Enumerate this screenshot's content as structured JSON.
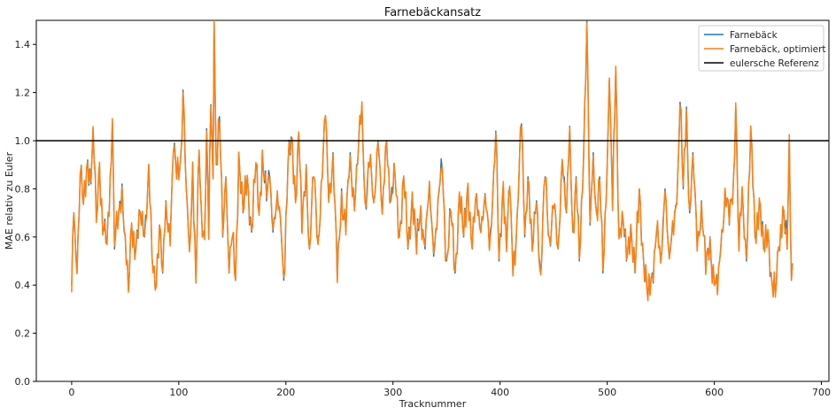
{
  "chart_data": {
    "type": "line",
    "title": "Farnebäckansatz",
    "xlabel": "Tracknummer",
    "ylabel": "MAE relativ zu Euler",
    "xlim": [
      -33,
      707
    ],
    "ylim": [
      0.0,
      1.5
    ],
    "xticks": [
      0,
      100,
      200,
      300,
      400,
      500,
      600,
      700
    ],
    "yticks": [
      0.0,
      0.2,
      0.4,
      0.6,
      0.8,
      1.0,
      1.2,
      1.4
    ],
    "legend_position": "top-right",
    "grid": false,
    "reference": {
      "name": "eulersche Referenz",
      "y": 1.0,
      "color": "#000000"
    },
    "series": [
      {
        "name": "Farnebäck",
        "color": "#1f77b4"
      },
      {
        "name": "Farnebäck, optimiert",
        "color": "#ff7f0e"
      }
    ],
    "num_tracks": 674,
    "keypoints": [
      [
        0,
        0.4
      ],
      [
        2,
        0.7
      ],
      [
        5,
        0.45
      ],
      [
        8,
        0.86
      ],
      [
        11,
        0.74
      ],
      [
        15,
        0.92
      ],
      [
        18,
        0.82
      ],
      [
        20,
        1.05
      ],
      [
        23,
        0.7
      ],
      [
        26,
        0.9
      ],
      [
        29,
        0.62
      ],
      [
        33,
        0.58
      ],
      [
        36,
        0.85
      ],
      [
        38,
        1.08
      ],
      [
        40,
        0.55
      ],
      [
        44,
        0.7
      ],
      [
        47,
        0.82
      ],
      [
        50,
        0.6
      ],
      [
        53,
        0.38
      ],
      [
        56,
        0.65
      ],
      [
        60,
        0.55
      ],
      [
        64,
        0.7
      ],
      [
        68,
        0.6
      ],
      [
        72,
        0.9
      ],
      [
        75,
        0.52
      ],
      [
        78,
        0.38
      ],
      [
        82,
        0.65
      ],
      [
        85,
        0.45
      ],
      [
        88,
        0.75
      ],
      [
        92,
        0.6
      ],
      [
        95,
        0.95
      ],
      [
        98,
        0.85
      ],
      [
        102,
        0.95
      ],
      [
        104,
        1.21
      ],
      [
        107,
        0.8
      ],
      [
        110,
        0.55
      ],
      [
        113,
        0.9
      ],
      [
        116,
        0.42
      ],
      [
        119,
        0.95
      ],
      [
        121,
        0.72
      ],
      [
        124,
        0.6
      ],
      [
        126,
        1.05
      ],
      [
        128,
        0.6
      ],
      [
        130,
        1.15
      ],
      [
        132,
        0.85
      ],
      [
        133,
        1.5
      ],
      [
        135,
        0.9
      ],
      [
        138,
        1.1
      ],
      [
        141,
        0.6
      ],
      [
        144,
        0.85
      ],
      [
        147,
        0.45
      ],
      [
        150,
        0.6
      ],
      [
        153,
        0.42
      ],
      [
        156,
        0.95
      ],
      [
        160,
        0.7
      ],
      [
        164,
        0.85
      ],
      [
        168,
        0.62
      ],
      [
        172,
        0.9
      ],
      [
        175,
        0.7
      ],
      [
        178,
        0.95
      ],
      [
        182,
        0.75
      ],
      [
        185,
        0.85
      ],
      [
        188,
        0.62
      ],
      [
        192,
        0.78
      ],
      [
        196,
        0.58
      ],
      [
        198,
        0.42
      ],
      [
        202,
        0.9
      ],
      [
        206,
        1.0
      ],
      [
        209,
        0.75
      ],
      [
        212,
        1.03
      ],
      [
        215,
        0.62
      ],
      [
        219,
        0.9
      ],
      [
        222,
        0.55
      ],
      [
        226,
        0.85
      ],
      [
        230,
        0.6
      ],
      [
        234,
        0.85
      ],
      [
        237,
        1.1
      ],
      [
        240,
        0.75
      ],
      [
        244,
        0.95
      ],
      [
        248,
        0.42
      ],
      [
        252,
        0.8
      ],
      [
        256,
        0.62
      ],
      [
        260,
        0.95
      ],
      [
        264,
        0.72
      ],
      [
        268,
        1.0
      ],
      [
        271,
        1.15
      ],
      [
        274,
        0.75
      ],
      [
        278,
        0.9
      ],
      [
        282,
        0.75
      ],
      [
        286,
        1.0
      ],
      [
        290,
        0.7
      ],
      [
        294,
        1.0
      ],
      [
        298,
        0.75
      ],
      [
        302,
        0.85
      ],
      [
        306,
        0.6
      ],
      [
        310,
        0.85
      ],
      [
        314,
        0.55
      ],
      [
        318,
        0.78
      ],
      [
        322,
        0.55
      ],
      [
        326,
        0.72
      ],
      [
        330,
        0.55
      ],
      [
        334,
        0.82
      ],
      [
        338,
        0.52
      ],
      [
        342,
        0.75
      ],
      [
        346,
        0.88
      ],
      [
        350,
        0.5
      ],
      [
        354,
        0.7
      ],
      [
        358,
        0.45
      ],
      [
        362,
        0.78
      ],
      [
        366,
        0.6
      ],
      [
        370,
        0.82
      ],
      [
        374,
        0.55
      ],
      [
        378,
        0.78
      ],
      [
        382,
        0.62
      ],
      [
        386,
        0.78
      ],
      [
        390,
        0.55
      ],
      [
        393,
        0.75
      ],
      [
        396,
        1.04
      ],
      [
        399,
        0.5
      ],
      [
        403,
        0.82
      ],
      [
        406,
        0.55
      ],
      [
        409,
        0.8
      ],
      [
        412,
        0.45
      ],
      [
        416,
        0.7
      ],
      [
        420,
        1.07
      ],
      [
        423,
        0.6
      ],
      [
        426,
        0.85
      ],
      [
        430,
        0.55
      ],
      [
        434,
        0.75
      ],
      [
        438,
        0.45
      ],
      [
        442,
        0.85
      ],
      [
        446,
        0.6
      ],
      [
        450,
        0.72
      ],
      [
        454,
        0.55
      ],
      [
        458,
        0.92
      ],
      [
        462,
        0.7
      ],
      [
        465,
        1.06
      ],
      [
        468,
        0.62
      ],
      [
        471,
        0.85
      ],
      [
        474,
        0.5
      ],
      [
        477,
        0.8
      ],
      [
        481,
        1.5
      ],
      [
        484,
        0.65
      ],
      [
        487,
        0.95
      ],
      [
        490,
        0.7
      ],
      [
        493,
        0.85
      ],
      [
        496,
        0.45
      ],
      [
        499,
        0.75
      ],
      [
        502,
        1.25
      ],
      [
        505,
        0.72
      ],
      [
        508,
        1.3
      ],
      [
        511,
        0.6
      ],
      [
        514,
        0.7
      ],
      [
        518,
        0.5
      ],
      [
        522,
        0.65
      ],
      [
        526,
        0.45
      ],
      [
        530,
        0.8
      ],
      [
        534,
        0.5
      ],
      [
        538,
        0.34
      ],
      [
        542,
        0.45
      ],
      [
        546,
        0.62
      ],
      [
        550,
        0.5
      ],
      [
        554,
        0.8
      ],
      [
        558,
        0.52
      ],
      [
        562,
        0.62
      ],
      [
        566,
        0.88
      ],
      [
        568,
        1.16
      ],
      [
        571,
        0.8
      ],
      [
        574,
        1.14
      ],
      [
        577,
        0.7
      ],
      [
        580,
        0.95
      ],
      [
        584,
        0.55
      ],
      [
        588,
        0.75
      ],
      [
        592,
        0.45
      ],
      [
        596,
        0.6
      ],
      [
        600,
        0.4
      ],
      [
        603,
        0.36
      ],
      [
        606,
        0.55
      ],
      [
        610,
        0.8
      ],
      [
        614,
        0.65
      ],
      [
        618,
        0.85
      ],
      [
        620,
        1.15
      ],
      [
        623,
        0.55
      ],
      [
        626,
        0.8
      ],
      [
        630,
        0.5
      ],
      [
        634,
        1.05
      ],
      [
        638,
        0.6
      ],
      [
        642,
        0.75
      ],
      [
        646,
        0.55
      ],
      [
        650,
        0.62
      ],
      [
        654,
        0.4
      ],
      [
        657,
        0.36
      ],
      [
        660,
        0.55
      ],
      [
        664,
        0.72
      ],
      [
        668,
        0.55
      ],
      [
        670,
        1.02
      ],
      [
        672,
        0.42
      ],
      [
        674,
        0.55
      ]
    ]
  }
}
